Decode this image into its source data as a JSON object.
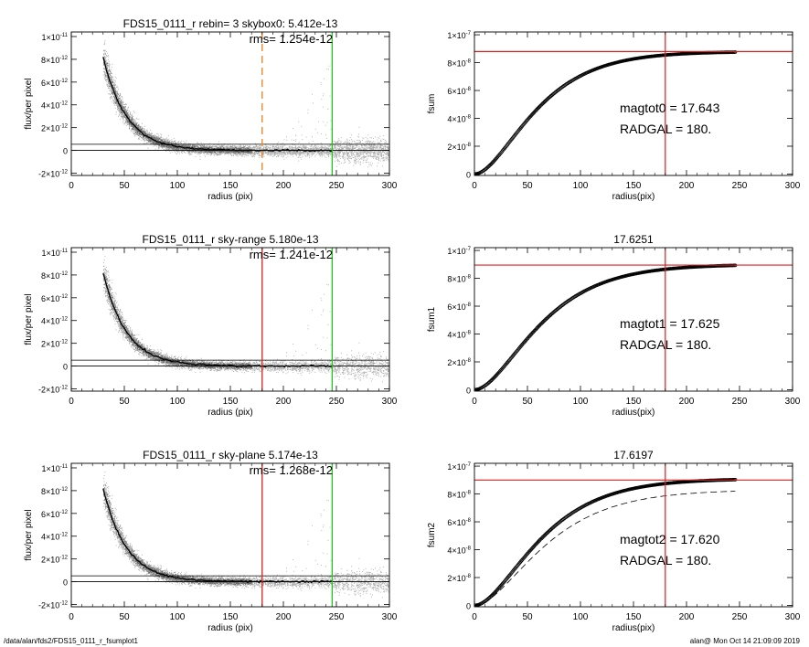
{
  "chart_data": [
    {
      "type": "scatter",
      "title": "FDS15_0111_r rebin= 3    skybox0:  5.412e-13",
      "xlabel": "radius (pix)",
      "ylabel": "flux/per pixel",
      "xlim": [
        0,
        300
      ],
      "ylim": [
        -2.2e-12,
        1.04e-11
      ],
      "xticks": [
        "0",
        "50",
        "100",
        "150",
        "200",
        "250",
        "300"
      ],
      "yticks": [
        {
          "v": -2e-12,
          "m": "-2×10",
          "e": "-12"
        },
        {
          "v": 0,
          "m": "0",
          "e": ""
        },
        {
          "v": 2e-12,
          "m": "2×10",
          "e": "-12"
        },
        {
          "v": 4e-12,
          "m": "4×10",
          "e": "-12"
        },
        {
          "v": 6e-12,
          "m": "6×10",
          "e": "-12"
        },
        {
          "v": 8e-12,
          "m": "8×10",
          "e": "-12"
        },
        {
          "v": 1e-11,
          "m": "1×10",
          "e": "-11"
        }
      ],
      "annotation": "rms= 1.254e-12",
      "profile": {
        "amplitude": 3.2e-11,
        "scale_pix": 22
      },
      "hlines": [
        0,
        5.4e-13
      ],
      "vlines": [
        {
          "x": 180,
          "color": "#e87f1e",
          "dash": true
        },
        {
          "x": 246,
          "color": "#22c322",
          "dash": false
        }
      ]
    },
    {
      "type": "line",
      "title": "",
      "xlabel": "radius(pix)",
      "ylabel": "fsum",
      "xlim": [
        0,
        300
      ],
      "ylim": [
        -1e-09,
        1.02e-07
      ],
      "xticks": [
        "0",
        "50",
        "100",
        "150",
        "200",
        "250",
        "300"
      ],
      "yticks": [
        {
          "v": 0,
          "m": "0",
          "e": ""
        },
        {
          "v": 2e-08,
          "m": "2×10",
          "e": "-8"
        },
        {
          "v": 4e-08,
          "m": "4×10",
          "e": "-8"
        },
        {
          "v": 6e-08,
          "m": "6×10",
          "e": "-8"
        },
        {
          "v": 8e-08,
          "m": "8×10",
          "e": "-8"
        },
        {
          "v": 1e-07,
          "m": "1×10",
          "e": "-7"
        }
      ],
      "ftot": 8.8e-08,
      "k": 0.03,
      "hline": 8.8e-08,
      "vline": 180,
      "annotations": [
        "magtot0 =  17.643",
        "RADGAL =    180."
      ]
    },
    {
      "type": "scatter",
      "title": "FDS15_0111_r sky-range  5.180e-13",
      "xlabel": "radius (pix)",
      "ylabel": "flux/per pixel",
      "xlim": [
        0,
        300
      ],
      "ylim": [
        -2.2e-12,
        1.04e-11
      ],
      "xticks": [
        "0",
        "50",
        "100",
        "150",
        "200",
        "250",
        "300"
      ],
      "yticks": [
        {
          "v": -2e-12,
          "m": "-2×10",
          "e": "-12"
        },
        {
          "v": 0,
          "m": "0",
          "e": ""
        },
        {
          "v": 2e-12,
          "m": "2×10",
          "e": "-12"
        },
        {
          "v": 4e-12,
          "m": "4×10",
          "e": "-12"
        },
        {
          "v": 6e-12,
          "m": "6×10",
          "e": "-12"
        },
        {
          "v": 8e-12,
          "m": "8×10",
          "e": "-12"
        },
        {
          "v": 1e-11,
          "m": "1×10",
          "e": "-11"
        }
      ],
      "annotation": "rms= 1.241e-12",
      "profile": {
        "amplitude": 3.2e-11,
        "scale_pix": 22
      },
      "hlines": [
        0,
        5.2e-13
      ],
      "vlines": [
        {
          "x": 180,
          "color": "#d62020",
          "dash": false
        },
        {
          "x": 246,
          "color": "#22c322",
          "dash": false
        }
      ]
    },
    {
      "type": "line",
      "title": "17.6251",
      "xlabel": "radius(pix)",
      "ylabel": "fsum1",
      "xlim": [
        0,
        300
      ],
      "ylim": [
        -1e-09,
        1.02e-07
      ],
      "xticks": [
        "0",
        "50",
        "100",
        "150",
        "200",
        "250",
        "300"
      ],
      "yticks": [
        {
          "v": 0,
          "m": "0",
          "e": ""
        },
        {
          "v": 2e-08,
          "m": "2×10",
          "e": "-8"
        },
        {
          "v": 4e-08,
          "m": "4×10",
          "e": "-8"
        },
        {
          "v": 6e-08,
          "m": "6×10",
          "e": "-8"
        },
        {
          "v": 8e-08,
          "m": "8×10",
          "e": "-8"
        },
        {
          "v": 1e-07,
          "m": "1×10",
          "e": "-7"
        }
      ],
      "ftot": 9e-08,
      "k": 0.028,
      "hline": 8.95e-08,
      "vline": 180,
      "annotations": [
        "magtot1 =  17.625",
        "RADGAL =    180."
      ]
    },
    {
      "type": "scatter",
      "title": "FDS15_0111_r sky-plane  5.174e-13",
      "xlabel": "radius (pix)",
      "ylabel": "flux/per pixel",
      "xlim": [
        0,
        300
      ],
      "ylim": [
        -2.2e-12,
        1.04e-11
      ],
      "xticks": [
        "0",
        "50",
        "100",
        "150",
        "200",
        "250",
        "300"
      ],
      "yticks": [
        {
          "v": -2e-12,
          "m": "-2×10",
          "e": "-12"
        },
        {
          "v": 0,
          "m": "0",
          "e": ""
        },
        {
          "v": 2e-12,
          "m": "2×10",
          "e": "-12"
        },
        {
          "v": 4e-12,
          "m": "4×10",
          "e": "-12"
        },
        {
          "v": 6e-12,
          "m": "6×10",
          "e": "-12"
        },
        {
          "v": 8e-12,
          "m": "8×10",
          "e": "-12"
        },
        {
          "v": 1e-11,
          "m": "1×10",
          "e": "-11"
        }
      ],
      "annotation": "rms= 1.268e-12",
      "profile": {
        "amplitude": 3.2e-11,
        "scale_pix": 22
      },
      "hlines": [
        0,
        5.2e-13
      ],
      "vlines": [
        {
          "x": 180,
          "color": "#d62020",
          "dash": false
        },
        {
          "x": 246,
          "color": "#22c322",
          "dash": false
        }
      ]
    },
    {
      "type": "line",
      "title": "17.6197",
      "xlabel": "radius(pix)",
      "ylabel": "fsum2",
      "xlim": [
        0,
        300
      ],
      "ylim": [
        -1e-09,
        1.02e-07
      ],
      "xticks": [
        "0",
        "50",
        "100",
        "150",
        "200",
        "250",
        "300"
      ],
      "yticks": [
        {
          "v": 0,
          "m": "0",
          "e": ""
        },
        {
          "v": 2e-08,
          "m": "2×10",
          "e": "-8"
        },
        {
          "v": 4e-08,
          "m": "4×10",
          "e": "-8"
        },
        {
          "v": 6e-08,
          "m": "6×10",
          "e": "-8"
        },
        {
          "v": 8e-08,
          "m": "8×10",
          "e": "-8"
        },
        {
          "v": 1e-07,
          "m": "1×10",
          "e": "-7"
        }
      ],
      "ftot": 9.1e-08,
      "k": 0.028,
      "hline": 9e-08,
      "vline": 180,
      "dashed_series": {
        "ftot": 8.3e-08,
        "k": 0.026
      },
      "annotations": [
        "magtot2 =  17.620",
        "RADGAL =    180."
      ]
    }
  ],
  "footer": {
    "left": "/data/alan/fds2/FDS15_0111_r_fsumplot1",
    "right": "alan@  Mon Oct 14 21:09:09 2019"
  }
}
